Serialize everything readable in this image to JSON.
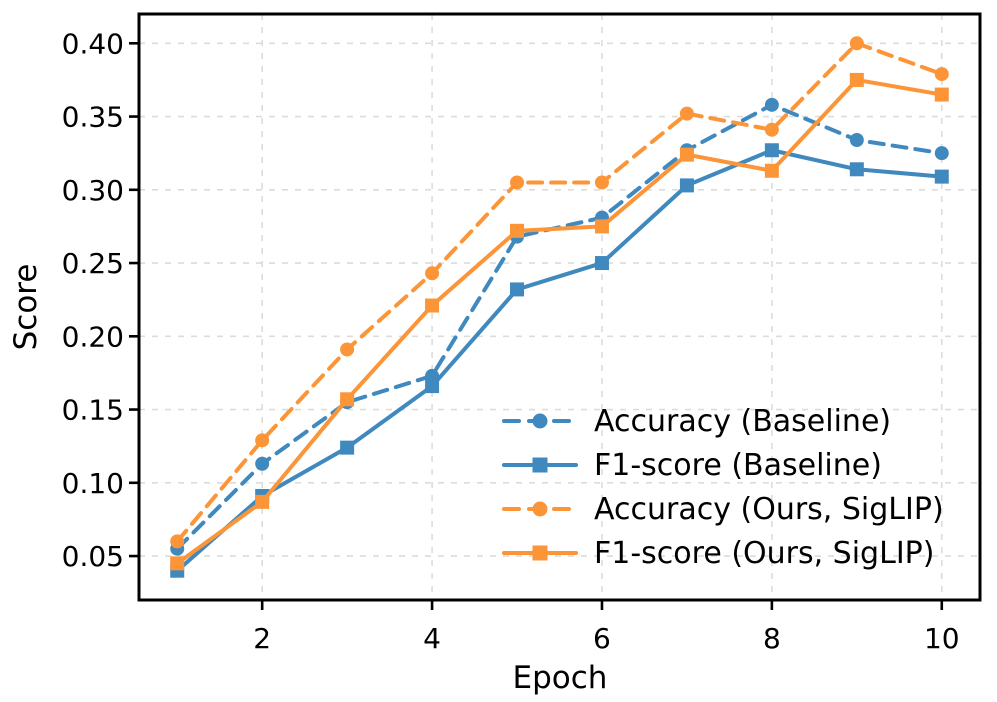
{
  "chart_data": {
    "type": "line",
    "title": "",
    "xlabel": "Epoch",
    "ylabel": "Score",
    "x": [
      1,
      2,
      3,
      4,
      5,
      6,
      7,
      8,
      9,
      10
    ],
    "series": [
      {
        "name": "Accuracy (Baseline)",
        "color": "#4089bf",
        "line_style": "dashed",
        "marker": "circle",
        "values": [
          0.055,
          0.113,
          0.155,
          0.173,
          0.268,
          0.281,
          0.327,
          0.358,
          0.334,
          0.325
        ]
      },
      {
        "name": "F1-score (Baseline)",
        "color": "#4089bf",
        "line_style": "solid",
        "marker": "square",
        "values": [
          0.04,
          0.091,
          0.124,
          0.166,
          0.232,
          0.25,
          0.303,
          0.327,
          0.314,
          0.309
        ]
      },
      {
        "name": "Accuracy (Ours, SigLIP)",
        "color": "#fb9538",
        "line_style": "dashed",
        "marker": "circle",
        "values": [
          0.06,
          0.129,
          0.191,
          0.243,
          0.305,
          0.305,
          0.352,
          0.341,
          0.4,
          0.379
        ]
      },
      {
        "name": "F1-score (Ours, SigLIP)",
        "color": "#fb9538",
        "line_style": "solid",
        "marker": "square",
        "values": [
          0.045,
          0.087,
          0.157,
          0.221,
          0.272,
          0.275,
          0.324,
          0.313,
          0.375,
          0.365
        ]
      }
    ],
    "xticks": [
      2,
      4,
      6,
      8,
      10
    ],
    "yticks": [
      0.05,
      0.1,
      0.15,
      0.2,
      0.25,
      0.3,
      0.35,
      0.4
    ],
    "xlim": [
      0.55,
      10.45
    ],
    "ylim": [
      0.02,
      0.42
    ],
    "grid": true,
    "grid_style": "dashed",
    "grid_color": "#dcdcdc",
    "spine_color": "#000000",
    "legend_position": "lower right",
    "legend_frame": false
  }
}
